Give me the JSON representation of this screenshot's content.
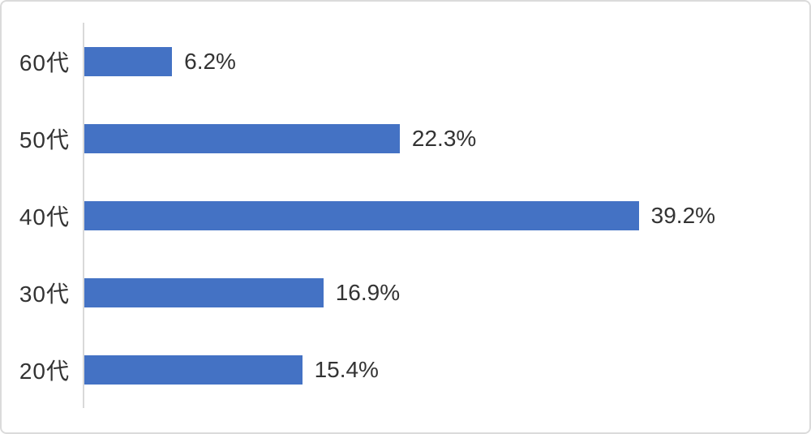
{
  "chart_data": {
    "type": "bar",
    "orientation": "horizontal",
    "title": "",
    "xlabel": "",
    "ylabel": "",
    "categories": [
      "60代",
      "50代",
      "40代",
      "30代",
      "20代"
    ],
    "values": [
      6.2,
      22.3,
      39.2,
      16.9,
      15.4
    ],
    "value_labels": [
      "6.2%",
      "22.3%",
      "39.2%",
      "16.9%",
      "15.4%"
    ],
    "xlim": [
      0,
      50
    ],
    "grid": false,
    "legend": false,
    "bar_color": "#4472C4",
    "axis_line_color": "#D9D9D9",
    "frame_border_color": "#DBDBDB",
    "text_color": "#333333",
    "background_color": "#FFFFFF"
  }
}
